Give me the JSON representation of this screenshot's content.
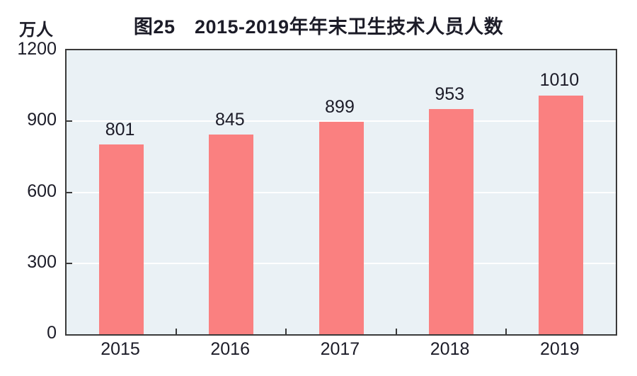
{
  "chart_data": {
    "type": "bar",
    "title": "图25　2015-2019年年末卫生技术人员人数",
    "unit_label": "万人",
    "categories": [
      "2015",
      "2016",
      "2017",
      "2018",
      "2019"
    ],
    "values": [
      801,
      845,
      899,
      953,
      1010
    ],
    "value_labels": [
      "801",
      "845",
      "899",
      "953",
      "1010"
    ],
    "xlabel": "",
    "ylabel": "万人",
    "ylim": [
      0,
      1200
    ],
    "yticks": [
      0,
      300,
      600,
      900,
      1200
    ],
    "grid": "horizontal",
    "legend": "none",
    "colors": {
      "bar": "#fa8080",
      "plot_background": "#eaf1f5",
      "grid_line": "#ffffff",
      "axis_border": "#3a3a3a",
      "text": "#1c1c28"
    }
  }
}
